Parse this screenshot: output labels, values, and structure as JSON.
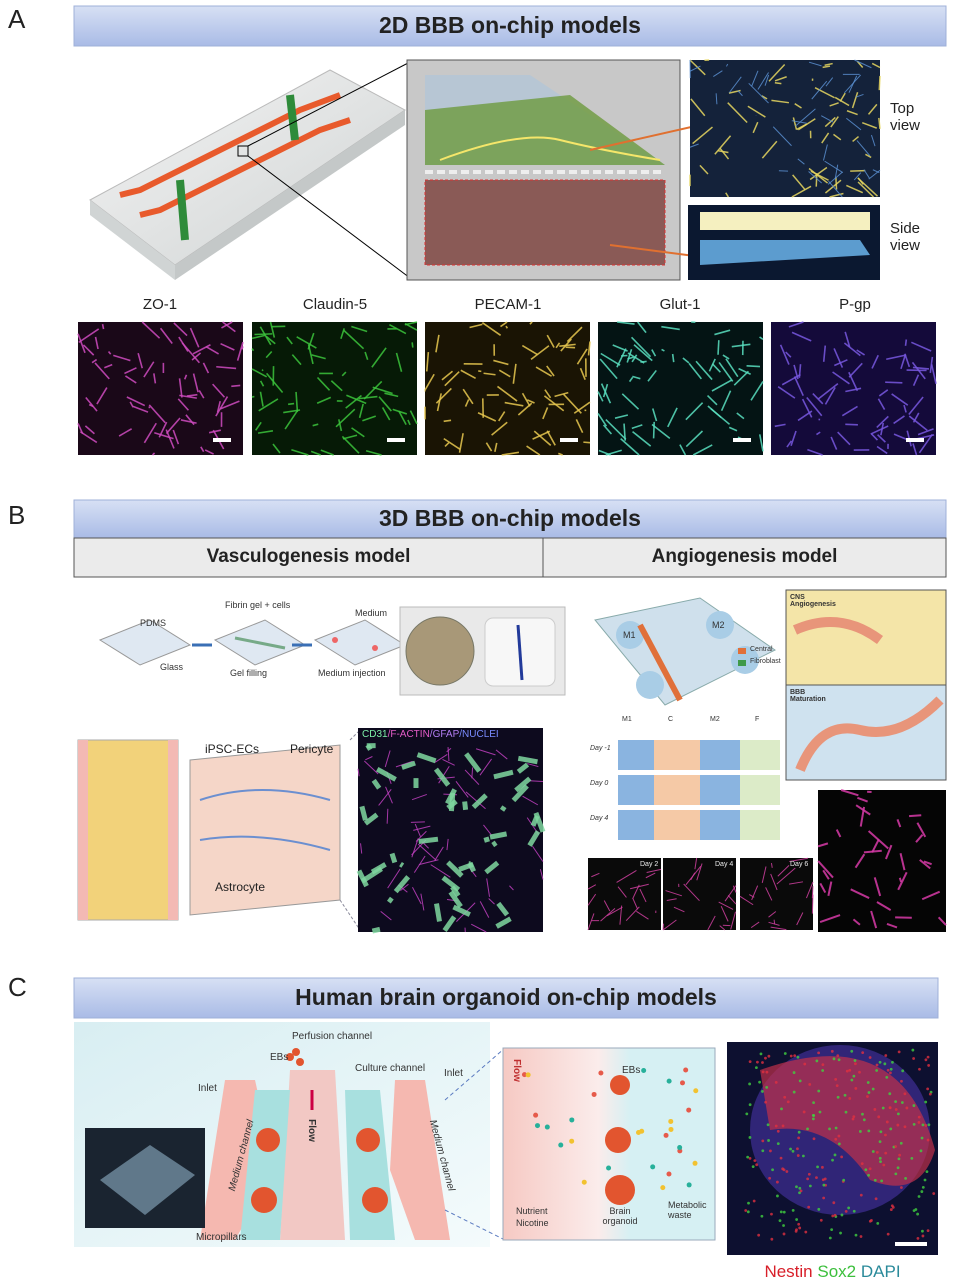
{
  "panel_a": {
    "letter": "A",
    "title": "2D BBB on-chip models",
    "view_labels": [
      "Top view",
      "Side view"
    ],
    "markers": [
      "ZO-1",
      "Claudin-5",
      "PECAM-1",
      "Glut-1",
      "P-gp"
    ]
  },
  "panel_b": {
    "letter": "B",
    "title": "3D BBB on-chip models",
    "models": [
      "Vasculogenesis model",
      "Angiogenesis model"
    ],
    "vasculogenesis": {
      "schematic_labels": [
        "PDMS",
        "Glass",
        "Fibrin gel + cells",
        "Gel filling",
        "Medium",
        "Medium injection"
      ],
      "cell_labels": [
        "iPSC-ECs",
        "Pericyte",
        "Astrocyte"
      ],
      "stain_labels": [
        "CD31",
        "/F-ACTIN",
        "/GFAP",
        "/NUCLEI"
      ]
    },
    "angiogenesis": {
      "chip_labels": [
        "M1",
        "M2",
        "Central",
        "Fibroblast"
      ],
      "inset_titles": [
        "CNS Angiogenesis",
        "BBB Maturation"
      ],
      "columns": [
        "M1",
        "C",
        "M2",
        "F"
      ],
      "rows": [
        "Day -1",
        "Day 0",
        "Day 4"
      ],
      "timepoints": [
        "Day 2",
        "Day 4",
        "Day 6"
      ]
    }
  },
  "panel_c": {
    "letter": "C",
    "title": "Human brain organoid on-chip models",
    "device_labels": [
      "Perfusion channel",
      "EBs",
      "Culture channel",
      "Inlet",
      "Inlet",
      "Medium channel",
      "Medium channel",
      "Flow",
      "Micropillars"
    ],
    "zoom_labels": [
      "Flow",
      "EBs",
      "Nutrient",
      "Nicotine",
      "Brain organoid",
      "Metabolic waste"
    ],
    "stains": [
      "Nestin",
      "Sox2",
      "DAPI"
    ]
  }
}
